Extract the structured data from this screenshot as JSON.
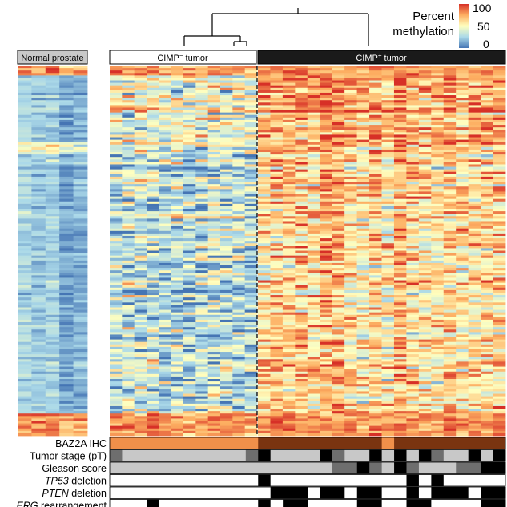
{
  "chart_data": {
    "type": "heatmap",
    "colorbar": {
      "title_line1": "Percent",
      "title_line2": "methylation",
      "ticks": [
        "100",
        "50",
        "0"
      ],
      "min": 0,
      "max": 100,
      "colors": [
        "#4575b4",
        "#abd9e9",
        "#ffffbf",
        "#fdae61",
        "#d73027"
      ]
    },
    "groups": {
      "normal": "Normal prostate",
      "cimp_neg_pre": "CIMP",
      "cimp_neg_sup": "−",
      "cimp_neg_post": " tumor",
      "cimp_pos_pre": "CIMP",
      "cimp_pos_sup": "+",
      "cimp_pos_post": " tumor"
    },
    "columns": {
      "normal": 5,
      "cimp_negative": 12,
      "cimp_positive": 20
    },
    "annotation_tracks": [
      {
        "name": "BAZ2A IHC",
        "italic_part": "",
        "rest": "BAZ2A IHC"
      },
      {
        "name": "Tumor stage (pT)",
        "italic_part": "",
        "rest": "Tumor stage (pT)"
      },
      {
        "name": "Gleason score",
        "italic_part": "",
        "rest": "Gleason score"
      },
      {
        "name": "TP53 deletion",
        "italic_part": "TP53",
        "rest": " deletion"
      },
      {
        "name": "PTEN deletion",
        "italic_part": "PTEN",
        "rest": " deletion"
      },
      {
        "name": "ERG rearrangement",
        "italic_part": "ERG",
        "rest": " rearrangement"
      }
    ],
    "track_colors": {
      "baz2a_low": "#f0904a",
      "baz2a_high": "#7a3410",
      "gray_light": "#c8c8c8",
      "gray_dark": "#6e6e6e",
      "black": "#000000",
      "white": "#ffffff"
    }
  }
}
